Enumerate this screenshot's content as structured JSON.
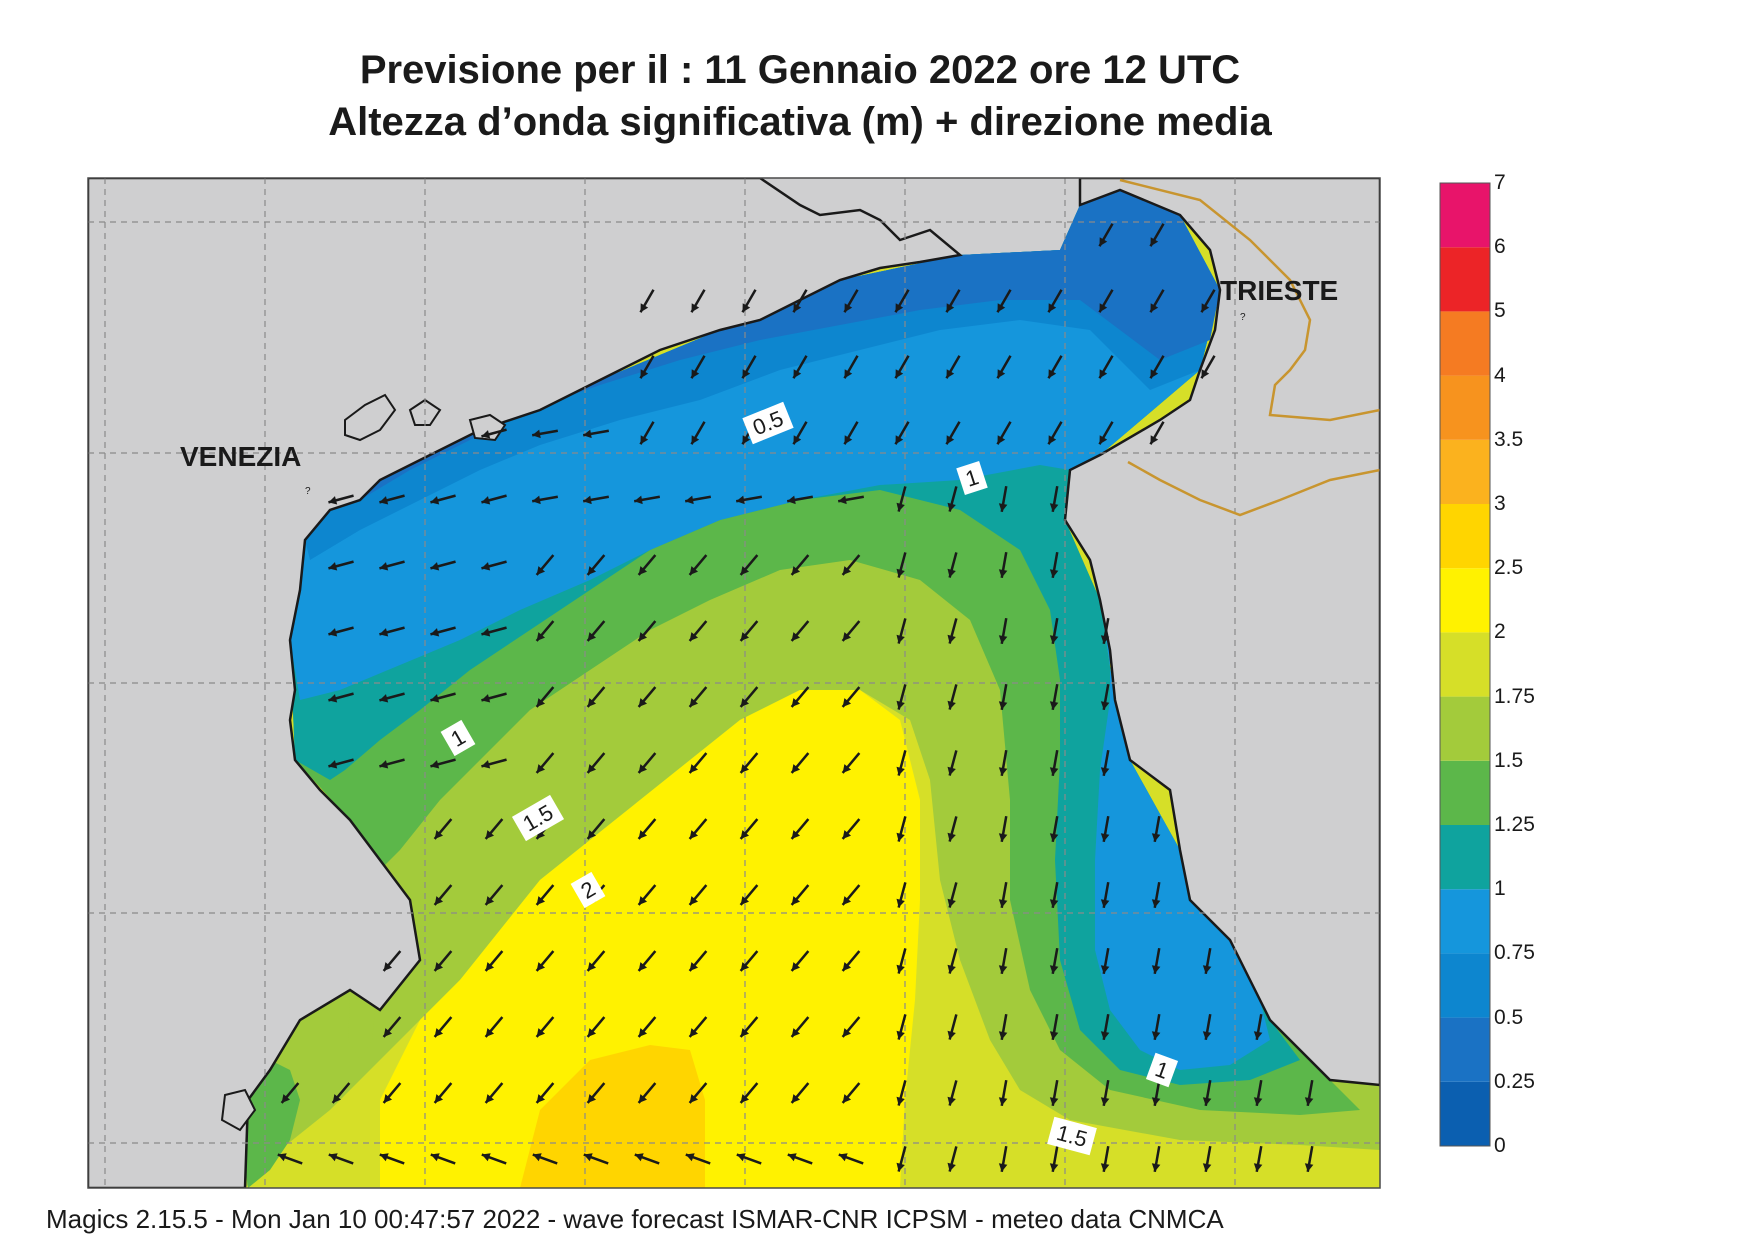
{
  "title_line1": "Previsione per il  :  11  Gennaio  2022   ore 12 UTC",
  "title_line2": "Altezza d’onda significativa (m) + direzione media",
  "footer": "Magics 2.15.5 - Mon Jan 10 00:47:57 2022 - wave forecast  ISMAR-CNR  ICPSM - meteo data   CNMCA",
  "places": {
    "venezia": "VENEZIA",
    "trieste": "TRIESTE"
  },
  "contour_labels": {
    "c05": "0.5",
    "c1a": "1",
    "c1b": "1",
    "c1c": "1",
    "c15a": "1.5",
    "c15b": "1.5",
    "c2": "2"
  },
  "legend": [
    {
      "label": "0",
      "color": "#0b5fb0"
    },
    {
      "label": "0.25",
      "color": "#1a72c4"
    },
    {
      "label": "0.5",
      "color": "#0d86cf"
    },
    {
      "label": "0.75",
      "color": "#1596dc"
    },
    {
      "label": "1",
      "color": "#0fa39e"
    },
    {
      "label": "1.25",
      "color": "#5cb74a"
    },
    {
      "label": "1.5",
      "color": "#a3cb3b"
    },
    {
      "label": "1.75",
      "color": "#d6df28"
    },
    {
      "label": "2",
      "color": "#fff200"
    },
    {
      "label": "2.5",
      "color": "#ffd500"
    },
    {
      "label": "3",
      "color": "#fbb21e"
    },
    {
      "label": "3.5",
      "color": "#f7931e"
    },
    {
      "label": "4",
      "color": "#f57b22"
    },
    {
      "label": "5",
      "color": "#ec2427"
    },
    {
      "label": "6",
      "color": "#e8146a"
    },
    {
      "label": "7",
      "color": ""
    }
  ],
  "colors": {
    "land": "#cfcfd0",
    "coast": "#1a1a1a",
    "border": "#c8952f",
    "arrow": "#1a1a1a"
  }
}
